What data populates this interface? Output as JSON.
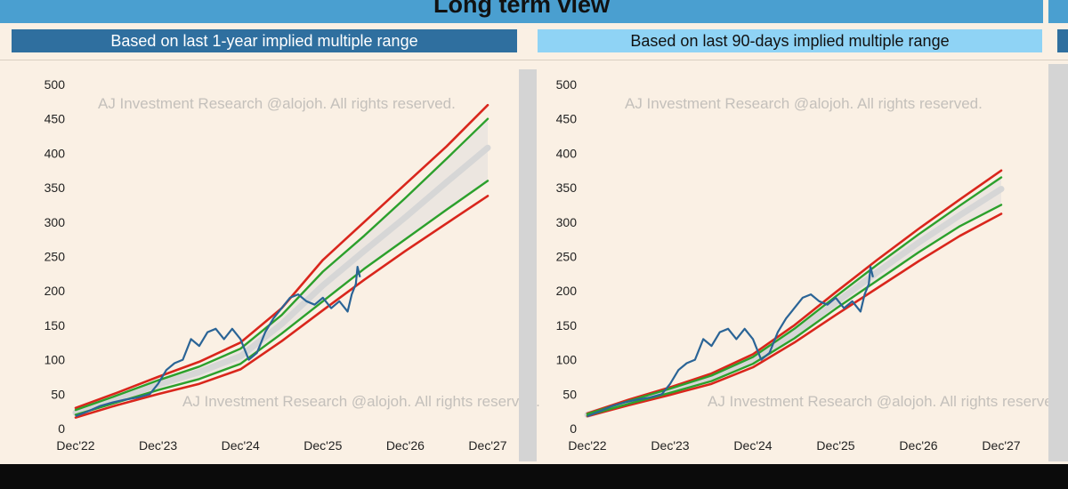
{
  "header": {
    "title": "Long term view",
    "left_subtitle": "Based on last 1-year implied multiple range",
    "right_subtitle": "Based on last 90-days implied multiple range"
  },
  "colors": {
    "title_bar": "#4a9fd0",
    "left_header": "#2f6f9f",
    "right_header": "#8fd3f5",
    "background": "#faf0e4",
    "price_line": "#2a6496",
    "outer_band": "#d9261c",
    "inner_band": "#2ca02c",
    "mid_band": "#d6d6d6"
  },
  "chart_data": [
    {
      "type": "line",
      "title": "Based on last 1-year implied multiple range",
      "watermark": "AJ Investment Research @alojoh. All rights reserved.",
      "x_ticks": [
        "Dec'22",
        "Dec'23",
        "Dec'24",
        "Dec'25",
        "Dec'26",
        "Dec'27"
      ],
      "y_ticks": [
        0,
        50,
        100,
        150,
        200,
        250,
        300,
        350,
        400,
        450,
        500
      ],
      "ylim": [
        0,
        500
      ],
      "xlim": [
        0,
        5
      ],
      "grid": false,
      "legend": "none",
      "price": {
        "x": [
          0,
          0.15,
          0.3,
          0.45,
          0.6,
          0.75,
          0.9,
          1.0,
          1.1,
          1.2,
          1.3,
          1.4,
          1.5,
          1.6,
          1.7,
          1.8,
          1.9,
          2.0,
          2.1,
          2.2,
          2.3,
          2.4,
          2.5,
          2.6,
          2.7,
          2.8,
          2.9,
          3.0,
          3.1,
          3.2,
          3.3,
          3.35,
          3.4,
          3.42,
          3.45
        ],
        "y": [
          18,
          25,
          33,
          38,
          42,
          45,
          50,
          65,
          85,
          95,
          100,
          130,
          120,
          140,
          145,
          130,
          145,
          130,
          100,
          110,
          140,
          160,
          175,
          190,
          195,
          185,
          180,
          190,
          175,
          185,
          170,
          195,
          210,
          235,
          220
        ]
      },
      "bands": {
        "x": [
          0,
          0.5,
          1.0,
          1.5,
          2.0,
          2.5,
          3.0,
          3.5,
          4.0,
          4.5,
          5.0
        ],
        "outer_high": [
          30,
          52,
          75,
          97,
          125,
          175,
          245,
          300,
          355,
          410,
          470
        ],
        "inner_high": [
          27,
          48,
          70,
          90,
          116,
          165,
          228,
          280,
          335,
          392,
          450
        ],
        "mid": [
          23,
          43,
          64,
          82,
          105,
          152,
          208,
          258,
          307,
          358,
          408
        ],
        "inner_low": [
          20,
          38,
          56,
          72,
          94,
          138,
          185,
          232,
          275,
          318,
          360
        ],
        "outer_low": [
          16,
          34,
          50,
          65,
          86,
          127,
          172,
          216,
          258,
          298,
          338
        ]
      }
    },
    {
      "type": "line",
      "title": "Based on last 90-days implied multiple range",
      "watermark": "AJ Investment Research @alojoh. All rights reserved.",
      "x_ticks": [
        "Dec'22",
        "Dec'23",
        "Dec'24",
        "Dec'25",
        "Dec'26",
        "Dec'27"
      ],
      "y_ticks": [
        0,
        50,
        100,
        150,
        200,
        250,
        300,
        350,
        400,
        450,
        500
      ],
      "ylim": [
        0,
        500
      ],
      "xlim": [
        0,
        5
      ],
      "grid": false,
      "legend": "none",
      "price": {
        "x": [
          0,
          0.15,
          0.3,
          0.45,
          0.6,
          0.75,
          0.9,
          1.0,
          1.1,
          1.2,
          1.3,
          1.4,
          1.5,
          1.6,
          1.7,
          1.8,
          1.9,
          2.0,
          2.1,
          2.2,
          2.3,
          2.4,
          2.5,
          2.6,
          2.7,
          2.8,
          2.9,
          3.0,
          3.1,
          3.2,
          3.3,
          3.35,
          3.4,
          3.42,
          3.45
        ],
        "y": [
          18,
          25,
          33,
          38,
          42,
          45,
          50,
          65,
          85,
          95,
          100,
          130,
          120,
          140,
          145,
          130,
          145,
          130,
          100,
          110,
          140,
          160,
          175,
          190,
          195,
          185,
          180,
          190,
          175,
          185,
          170,
          195,
          210,
          235,
          220
        ]
      },
      "bands": {
        "x": [
          0,
          0.5,
          1.0,
          1.5,
          2.0,
          2.5,
          3.0,
          3.5,
          4.0,
          4.5,
          5.0
        ],
        "outer_high": [
          22,
          42,
          60,
          80,
          108,
          150,
          198,
          245,
          290,
          333,
          375
        ],
        "inner_high": [
          21,
          40,
          58,
          77,
          104,
          145,
          192,
          238,
          282,
          324,
          365
        ],
        "mid": [
          20,
          38,
          55,
          73,
          99,
          138,
          183,
          227,
          270,
          310,
          348
        ],
        "inner_low": [
          19,
          36,
          52,
          69,
          94,
          131,
          174,
          215,
          256,
          294,
          325
        ],
        "outer_low": [
          18,
          34,
          49,
          65,
          89,
          125,
          165,
          204,
          243,
          280,
          312
        ]
      }
    }
  ]
}
